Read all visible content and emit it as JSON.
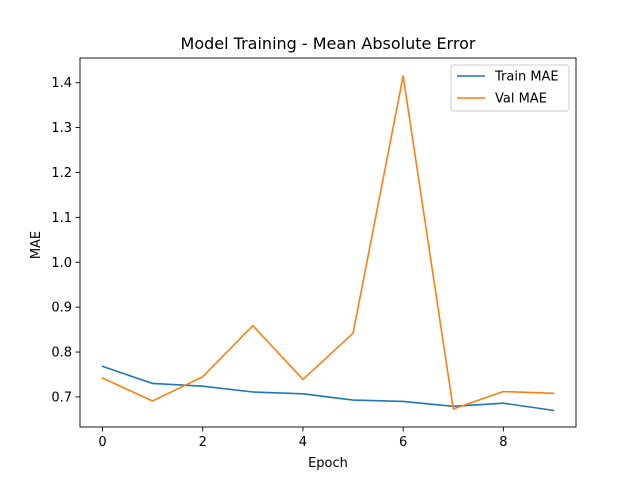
{
  "chart_data": {
    "type": "line",
    "title": "Model Training - Mean Absolute Error",
    "xlabel": "Epoch",
    "ylabel": "MAE",
    "x": [
      0,
      1,
      2,
      3,
      4,
      5,
      6,
      7,
      8,
      9
    ],
    "xlim": [
      -0.45,
      9.45
    ],
    "ylim": [
      0.633,
      1.455
    ],
    "xticks": [
      0,
      2,
      4,
      6,
      8
    ],
    "yticks": [
      0.7,
      0.8,
      0.9,
      1.0,
      1.1,
      1.2,
      1.3,
      1.4
    ],
    "ytick_labels": [
      "0.7",
      "0.8",
      "0.9",
      "1.0",
      "1.1",
      "1.2",
      "1.3",
      "1.4"
    ],
    "grid": false,
    "legend_position": "top-right",
    "series": [
      {
        "name": "Train MAE",
        "color": "#1f77b4",
        "values": [
          0.768,
          0.73,
          0.724,
          0.711,
          0.707,
          0.693,
          0.69,
          0.679,
          0.686,
          0.67
        ]
      },
      {
        "name": "Val MAE",
        "color": "#ff7f0e",
        "values": [
          0.742,
          0.691,
          0.745,
          0.859,
          0.739,
          0.842,
          1.415,
          0.673,
          0.712,
          0.708
        ]
      }
    ]
  }
}
